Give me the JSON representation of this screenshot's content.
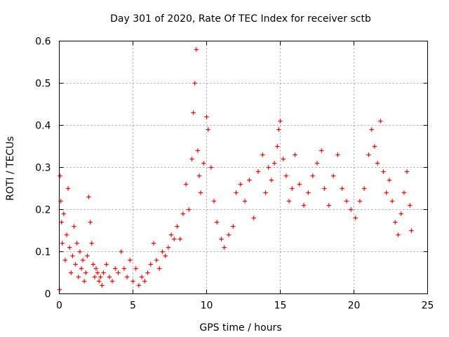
{
  "chart_data": {
    "type": "scatter",
    "title": "Day 301 of 2020, Rate Of TEC Index for receiver sctb",
    "xlabel": "GPS time / hours",
    "ylabel": "ROTI / TECUs",
    "xlim": [
      0,
      25
    ],
    "ylim": [
      0,
      0.6
    ],
    "xticks": [
      "0",
      "5",
      "10",
      "15",
      "20",
      "25"
    ],
    "yticks": [
      "0",
      "0.1",
      "0.2",
      "0.3",
      "0.4",
      "0.5",
      "0.6"
    ],
    "grid": true,
    "marker": "+",
    "color": "#ff0000",
    "series": [
      {
        "name": "",
        "points": [
          [
            0.02,
            0.01
          ],
          [
            0.05,
            0.28
          ],
          [
            0.1,
            0.22
          ],
          [
            0.15,
            0.17
          ],
          [
            0.2,
            0.12
          ],
          [
            0.3,
            0.19
          ],
          [
            0.4,
            0.08
          ],
          [
            0.5,
            0.14
          ],
          [
            0.6,
            0.25
          ],
          [
            0.7,
            0.11
          ],
          [
            0.8,
            0.05
          ],
          [
            0.9,
            0.09
          ],
          [
            1.0,
            0.16
          ],
          [
            1.1,
            0.07
          ],
          [
            1.2,
            0.12
          ],
          [
            1.3,
            0.04
          ],
          [
            1.4,
            0.1
          ],
          [
            1.5,
            0.06
          ],
          [
            1.6,
            0.08
          ],
          [
            1.7,
            0.03
          ],
          [
            1.8,
            0.05
          ],
          [
            1.9,
            0.09
          ],
          [
            2.0,
            0.23
          ],
          [
            2.1,
            0.17
          ],
          [
            2.2,
            0.12
          ],
          [
            2.3,
            0.07
          ],
          [
            2.4,
            0.04
          ],
          [
            2.5,
            0.06
          ],
          [
            2.6,
            0.05
          ],
          [
            2.7,
            0.03
          ],
          [
            2.8,
            0.04
          ],
          [
            2.9,
            0.02
          ],
          [
            3.0,
            0.05
          ],
          [
            3.2,
            0.07
          ],
          [
            3.4,
            0.04
          ],
          [
            3.6,
            0.03
          ],
          [
            3.8,
            0.06
          ],
          [
            4.0,
            0.05
          ],
          [
            4.2,
            0.1
          ],
          [
            4.4,
            0.06
          ],
          [
            4.6,
            0.04
          ],
          [
            4.8,
            0.08
          ],
          [
            5.0,
            0.03
          ],
          [
            5.2,
            0.06
          ],
          [
            5.4,
            0.02
          ],
          [
            5.6,
            0.04
          ],
          [
            5.8,
            0.03
          ],
          [
            6.0,
            0.05
          ],
          [
            6.2,
            0.07
          ],
          [
            6.4,
            0.12
          ],
          [
            6.6,
            0.08
          ],
          [
            6.8,
            0.06
          ],
          [
            7.0,
            0.1
          ],
          [
            7.2,
            0.09
          ],
          [
            7.4,
            0.11
          ],
          [
            7.6,
            0.14
          ],
          [
            7.8,
            0.13
          ],
          [
            8.0,
            0.16
          ],
          [
            8.2,
            0.13
          ],
          [
            8.4,
            0.19
          ],
          [
            8.6,
            0.26
          ],
          [
            8.8,
            0.2
          ],
          [
            9.0,
            0.32
          ],
          [
            9.1,
            0.43
          ],
          [
            9.2,
            0.5
          ],
          [
            9.3,
            0.58
          ],
          [
            9.4,
            0.34
          ],
          [
            9.5,
            0.28
          ],
          [
            9.6,
            0.24
          ],
          [
            9.8,
            0.31
          ],
          [
            10.0,
            0.42
          ],
          [
            10.1,
            0.39
          ],
          [
            10.3,
            0.3
          ],
          [
            10.5,
            0.22
          ],
          [
            10.7,
            0.17
          ],
          [
            11.0,
            0.13
          ],
          [
            11.2,
            0.11
          ],
          [
            11.5,
            0.14
          ],
          [
            11.8,
            0.16
          ],
          [
            12.0,
            0.24
          ],
          [
            12.3,
            0.26
          ],
          [
            12.6,
            0.22
          ],
          [
            12.9,
            0.27
          ],
          [
            13.2,
            0.18
          ],
          [
            13.5,
            0.29
          ],
          [
            13.8,
            0.33
          ],
          [
            14.0,
            0.24
          ],
          [
            14.2,
            0.3
          ],
          [
            14.4,
            0.27
          ],
          [
            14.6,
            0.31
          ],
          [
            14.8,
            0.35
          ],
          [
            14.9,
            0.39
          ],
          [
            15.0,
            0.41
          ],
          [
            15.2,
            0.32
          ],
          [
            15.4,
            0.28
          ],
          [
            15.6,
            0.22
          ],
          [
            15.8,
            0.25
          ],
          [
            16.0,
            0.33
          ],
          [
            16.3,
            0.26
          ],
          [
            16.6,
            0.21
          ],
          [
            16.9,
            0.24
          ],
          [
            17.2,
            0.28
          ],
          [
            17.5,
            0.31
          ],
          [
            17.8,
            0.34
          ],
          [
            18.0,
            0.25
          ],
          [
            18.3,
            0.21
          ],
          [
            18.6,
            0.28
          ],
          [
            18.9,
            0.33
          ],
          [
            19.2,
            0.25
          ],
          [
            19.5,
            0.22
          ],
          [
            19.8,
            0.2
          ],
          [
            20.1,
            0.18
          ],
          [
            20.4,
            0.22
          ],
          [
            20.7,
            0.25
          ],
          [
            21.0,
            0.33
          ],
          [
            21.2,
            0.39
          ],
          [
            21.4,
            0.35
          ],
          [
            21.6,
            0.31
          ],
          [
            21.8,
            0.41
          ],
          [
            22.0,
            0.29
          ],
          [
            22.2,
            0.24
          ],
          [
            22.4,
            0.27
          ],
          [
            22.6,
            0.22
          ],
          [
            22.8,
            0.17
          ],
          [
            23.0,
            0.14
          ],
          [
            23.2,
            0.19
          ],
          [
            23.4,
            0.24
          ],
          [
            23.6,
            0.29
          ],
          [
            23.8,
            0.21
          ],
          [
            23.9,
            0.15
          ]
        ]
      }
    ]
  }
}
